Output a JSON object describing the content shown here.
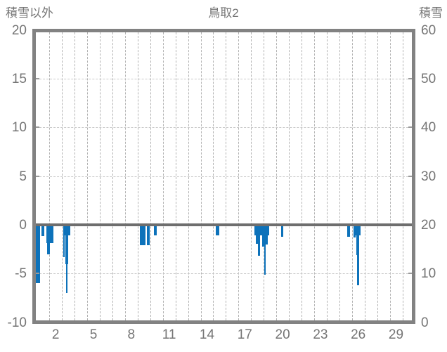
{
  "header": {
    "left_axis_title": "積雪以外",
    "chart_title": "鳥取2",
    "right_axis_title": "積雪"
  },
  "chart_data": {
    "type": "bar",
    "title": "鳥取2",
    "left_axis": {
      "label": "積雪以外",
      "ticks": [
        20,
        15,
        10,
        5,
        0,
        -5,
        -10
      ],
      "ylim": [
        -10,
        20
      ]
    },
    "right_axis": {
      "label": "積雪",
      "ticks": [
        60,
        50,
        40,
        30,
        20,
        10,
        0
      ],
      "ylim": [
        0,
        60
      ]
    },
    "x_axis": {
      "ticks": [
        2,
        5,
        8,
        11,
        14,
        17,
        20,
        23,
        26,
        29
      ],
      "xlim": [
        0.3,
        30.4
      ],
      "gridline_positions_start": 1.5,
      "gridline_positions_end": 29.5,
      "gridline_step": 1
    },
    "h_gridlines_at": [
      15,
      10,
      5,
      -5
    ],
    "zero_line_at": 0,
    "grid": true,
    "legend_position": "none",
    "bar_color": "#0d72ba",
    "axis_color": "#828282",
    "text_color": "#757575",
    "bars": [
      {
        "from": 0.4,
        "to": 0.77,
        "value": -6.0
      },
      {
        "from": 0.88,
        "to": 1.1,
        "value": -1.15
      },
      {
        "from": 1.27,
        "to": 1.82,
        "value": -1.9
      },
      {
        "from": 1.32,
        "to": 1.54,
        "value": -3.0
      },
      {
        "from": 2.6,
        "to": 2.72,
        "value": -3.3
      },
      {
        "from": 2.72,
        "to": 3.16,
        "value": -1.05
      },
      {
        "from": 2.76,
        "to": 2.98,
        "value": -4.0
      },
      {
        "from": 2.8,
        "to": 2.96,
        "value": -7.0
      },
      {
        "from": 8.7,
        "to": 9.11,
        "value": -2.1
      },
      {
        "from": 9.25,
        "to": 9.48,
        "value": -2.1
      },
      {
        "from": 9.8,
        "to": 10.03,
        "value": -1.1
      },
      {
        "from": 14.72,
        "to": 14.96,
        "value": -1.1
      },
      {
        "from": 17.75,
        "to": 18.92,
        "value": -1.1
      },
      {
        "from": 17.88,
        "to": 18.05,
        "value": -1.95
      },
      {
        "from": 18.05,
        "to": 18.21,
        "value": -3.15
      },
      {
        "from": 18.4,
        "to": 18.55,
        "value": -2.2
      },
      {
        "from": 18.55,
        "to": 18.68,
        "value": -5.1
      },
      {
        "from": 18.68,
        "to": 18.83,
        "value": -2.05
      },
      {
        "from": 19.86,
        "to": 20.05,
        "value": -1.25
      },
      {
        "from": 25.14,
        "to": 25.33,
        "value": -1.2
      },
      {
        "from": 25.64,
        "to": 25.79,
        "value": -1.3
      },
      {
        "from": 25.79,
        "to": 26.16,
        "value": -1.05
      },
      {
        "from": 25.84,
        "to": 26.0,
        "value": -3.1
      },
      {
        "from": 25.9,
        "to": 26.08,
        "value": -6.2
      }
    ]
  }
}
